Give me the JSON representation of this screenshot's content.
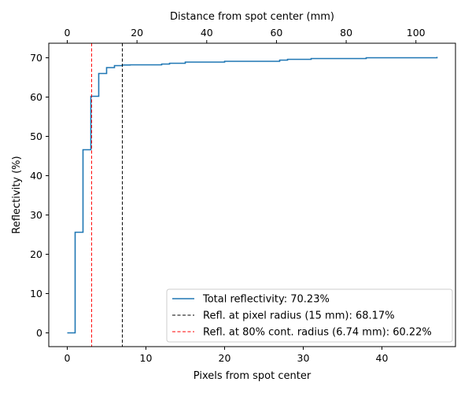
{
  "chart_data": {
    "type": "line",
    "title": "",
    "xlabel": "Pixels from spot center",
    "ylabel": "Reflectivity (%)",
    "top_xlabel": "Distance from spot center (mm)",
    "xlim": [
      -2.35,
      49.35
    ],
    "ylim": [
      -3.5,
      73.7
    ],
    "xticks": [
      0,
      10,
      20,
      30,
      40
    ],
    "yticks": [
      0,
      10,
      20,
      30,
      40,
      50,
      60,
      70
    ],
    "top_xticks": [
      0,
      20,
      40,
      60,
      80,
      100
    ],
    "top_scale_mm_per_pixel": 2.2562,
    "series": [
      {
        "name": "Total reflectivity: 70.23%",
        "color": "#1f77b4",
        "style": "steps-post",
        "x": [
          0,
          1,
          2,
          3,
          4,
          5,
          6,
          7,
          8,
          9,
          10,
          11,
          12,
          13,
          14,
          15,
          16,
          17,
          18,
          19,
          20,
          21,
          22,
          23,
          24,
          25,
          26,
          27,
          28,
          29,
          30,
          31,
          32,
          33,
          34,
          35,
          36,
          37,
          38,
          39,
          40,
          41,
          42,
          43,
          44,
          45,
          46,
          47
        ],
        "y": [
          0,
          25.6,
          46.6,
          60.2,
          66.0,
          67.5,
          68.0,
          68.17,
          68.2,
          68.2,
          68.2,
          68.2,
          68.4,
          68.6,
          68.6,
          68.9,
          68.9,
          68.9,
          68.9,
          68.9,
          69.1,
          69.1,
          69.1,
          69.1,
          69.1,
          69.1,
          69.1,
          69.4,
          69.6,
          69.6,
          69.6,
          69.8,
          69.8,
          69.8,
          69.8,
          69.8,
          69.8,
          69.8,
          70.0,
          70.0,
          70.0,
          70.0,
          70.0,
          70.0,
          70.0,
          70.0,
          70.0,
          70.23
        ]
      }
    ],
    "vlines": [
      {
        "name": "Refl. at pixel radius (15 mm): 68.17%",
        "x": 7.0,
        "color": "#000000",
        "dash": "dashed"
      },
      {
        "name": "Refl. at 80% cont. radius (6.74 mm): 60.22%",
        "x": 3.1,
        "color": "#ff0000",
        "dash": "dashed"
      }
    ],
    "legend_position": "lower-right"
  }
}
